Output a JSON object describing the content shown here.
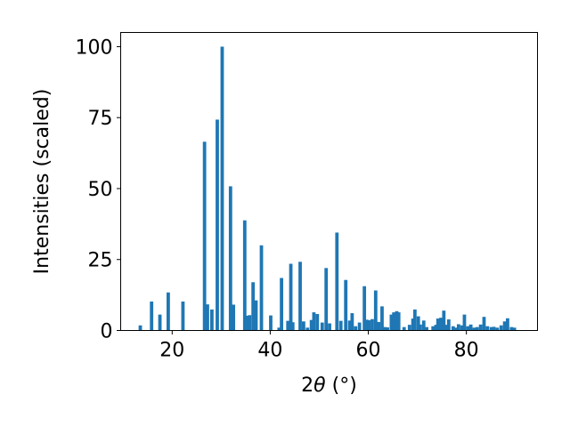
{
  "chart_data": {
    "type": "bar",
    "title": "",
    "xlabel_prefix": "2",
    "xlabel_symbol": "θ",
    "xlabel_suffix": " (°)",
    "ylabel": "Intensities (scaled)",
    "xlim": [
      9.5,
      94.5
    ],
    "ylim": [
      0,
      105
    ],
    "grid": false,
    "bar_color": "#1f77b4",
    "xticks": [
      20,
      40,
      60,
      80
    ],
    "yticks": [
      0,
      25,
      50,
      75,
      100
    ],
    "series": [
      {
        "x": [
          13.5,
          15.8,
          17.5,
          19.2,
          22.2,
          26.6,
          27.2,
          28.1,
          29.2,
          30.2,
          31.9,
          32.5,
          34.8,
          35.2,
          35.8,
          36.5,
          37.1,
          38.2,
          40.1,
          41.8,
          42.3,
          43.6,
          44.2,
          44.6,
          46.1,
          46.8,
          47.6,
          48.4,
          48.9,
          49.6,
          50.6,
          51.4,
          52.1,
          53.6,
          54.4,
          55.4,
          56.2,
          56.7,
          57.4,
          58.2,
          59.2,
          59.7,
          60.1,
          60.8,
          61.5,
          62.1,
          62.8,
          63.4,
          63.9,
          64.7,
          65.2,
          65.8,
          66.2,
          67.3,
          68.4,
          69.1,
          69.5,
          70.2,
          70.6,
          71.3,
          71.9,
          73.2,
          73.8,
          74.2,
          74.8,
          75.4,
          75.9,
          76.4,
          77.3,
          77.9,
          78.4,
          79.1,
          79.6,
          80.3,
          80.9,
          81.6,
          82.2,
          82.9,
          83.6,
          84.3,
          85.1,
          85.6,
          86.3,
          87.1,
          87.8,
          88.4,
          89.2,
          89.8
        ],
        "values": [
          1.8,
          10.2,
          5.6,
          13.4,
          10.2,
          66.5,
          9.2,
          7.4,
          74.3,
          100,
          50.8,
          9.1,
          38.8,
          5.2,
          5.4,
          17.0,
          10.6,
          30.0,
          5.3,
          1.0,
          18.5,
          3.4,
          23.5,
          2.9,
          24.2,
          3.2,
          1.0,
          3.7,
          6.4,
          5.8,
          2.8,
          22.0,
          2.5,
          34.5,
          3.4,
          17.8,
          3.5,
          6.1,
          1.5,
          2.8,
          15.6,
          3.8,
          3.6,
          4.0,
          14.1,
          3.0,
          8.5,
          1.2,
          1.1,
          5.6,
          6.4,
          6.8,
          6.4,
          1.2,
          2.0,
          4.2,
          7.4,
          5.0,
          2.1,
          3.5,
          1.2,
          1.5,
          2.0,
          4.2,
          4.5,
          7.0,
          2.0,
          3.9,
          1.5,
          1.0,
          2.2,
          1.8,
          5.6,
          1.5,
          2.1,
          1.0,
          1.2,
          2.1,
          4.8,
          1.5,
          1.2,
          1.3,
          1.0,
          1.8,
          3.2,
          4.3,
          1.2,
          1.0
        ]
      }
    ]
  }
}
